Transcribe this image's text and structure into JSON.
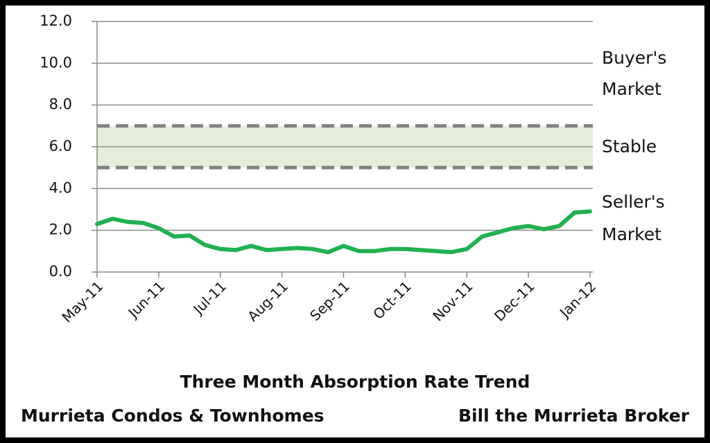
{
  "chart_data": {
    "type": "line",
    "title": "Three Month Absorption Rate Trend",
    "subtitle_left": "Murrieta Condos & Townhomes",
    "subtitle_right": "Bill the Murrieta Broker",
    "categories": [
      "May-11",
      null,
      null,
      null,
      "Jun-11",
      null,
      null,
      null,
      "Jul-11",
      null,
      null,
      null,
      "Aug-11",
      null,
      null,
      null,
      "Sep-11",
      null,
      null,
      null,
      "Oct-11",
      null,
      null,
      null,
      "Nov-11",
      null,
      null,
      null,
      "Dec-11",
      null,
      null,
      null,
      "Jan-12"
    ],
    "values": [
      2.3,
      2.55,
      2.4,
      2.35,
      2.1,
      1.7,
      1.75,
      1.3,
      1.1,
      1.05,
      1.25,
      1.05,
      1.1,
      1.15,
      1.1,
      0.95,
      1.25,
      1.0,
      1.0,
      1.1,
      1.1,
      1.05,
      1.0,
      0.95,
      1.1,
      1.7,
      1.9,
      2.1,
      2.2,
      2.05,
      2.2,
      2.85,
      2.9
    ],
    "color": "#1fb14f",
    "ylim": [
      0,
      12
    ],
    "yticks": [
      {
        "value": 0,
        "label": "0.0"
      },
      {
        "value": 2,
        "label": "2.0"
      },
      {
        "value": 4,
        "label": "4.0"
      },
      {
        "value": 6,
        "label": "6.0"
      },
      {
        "value": 8,
        "label": "8.0"
      },
      {
        "value": 10,
        "label": "10.0"
      },
      {
        "value": 12,
        "label": "12.0"
      }
    ],
    "grid": true,
    "band": {
      "range": [
        5,
        7
      ],
      "color": "#e5edd9"
    },
    "annotations": [
      [
        "Buyer's",
        "Market"
      ],
      [
        "Stable"
      ],
      [
        "Seller's",
        "Market"
      ]
    ]
  }
}
